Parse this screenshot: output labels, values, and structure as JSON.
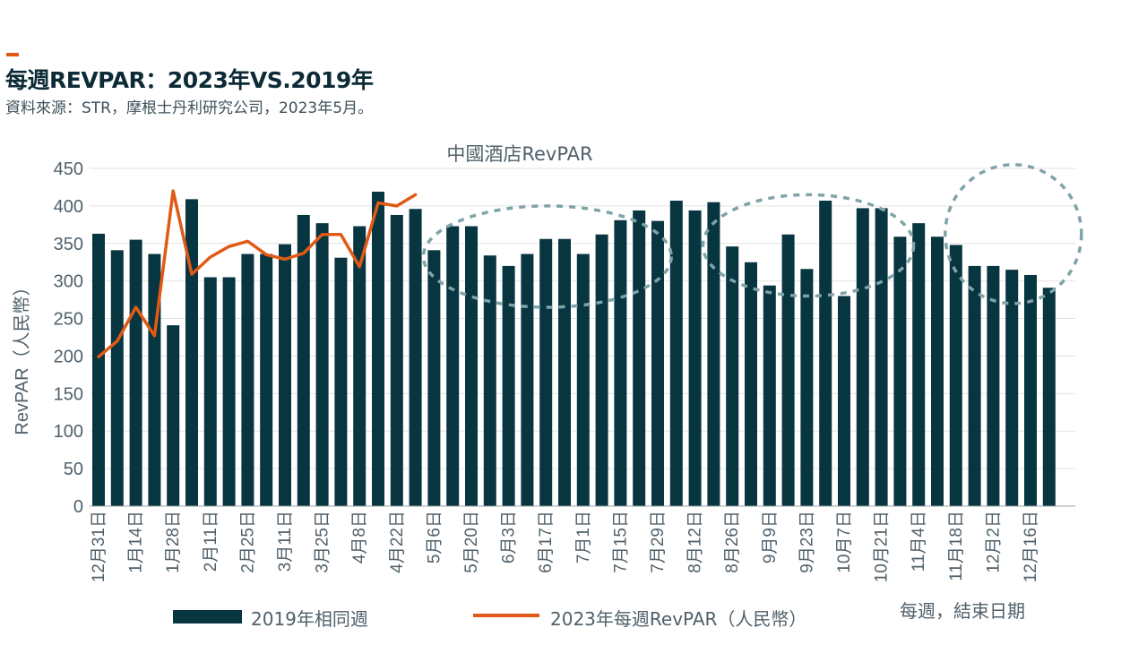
{
  "header": {
    "title": "每週REVPAR：2023年VS.2019年",
    "source": "資料來源：STR，摩根士丹利研究公司，2023年5月。"
  },
  "legend": {
    "bar_label": "2019年相同週",
    "line_label": "2023年每週RevPAR（人民幣）"
  },
  "x_axis_caption": "每週，結束日期",
  "colors": {
    "bars": "#073540",
    "line": "#e05a16",
    "highlight_ellipses": "#7fa3a8",
    "gridlines": "#e2e2e2",
    "text": "#50606a"
  },
  "chart_data": {
    "type": "bar",
    "title": "中國酒店RevPAR",
    "ylabel": "RevPAR（人民幣）",
    "ylim": [
      0,
      450
    ],
    "yticks": [
      0,
      50,
      100,
      150,
      200,
      250,
      300,
      350,
      400,
      450
    ],
    "grid": true,
    "legend_position": "bottom",
    "categories": [
      "12月31日",
      "",
      "1月14日",
      "",
      "1月28日",
      "",
      "2月11日",
      "",
      "2月25日",
      "",
      "3月11日",
      "",
      "3月25日",
      "",
      "4月8日",
      "",
      "4月22日",
      "",
      "5月6日",
      "",
      "5月20日",
      "",
      "6月3日",
      "",
      "6月17日",
      "",
      "7月1日",
      "",
      "7月15日",
      "",
      "7月29日",
      "",
      "8月12日",
      "",
      "8月26日",
      "",
      "9月9日",
      "",
      "9月23日",
      "",
      "10月7日",
      "",
      "10月21日",
      "",
      "11月4日",
      "",
      "11月18日",
      "",
      "12月2日",
      "",
      "12月16日",
      ""
    ],
    "series": [
      {
        "name": "2019年相同週",
        "type": "bar",
        "values": [
          363,
          341,
          355,
          336,
          241,
          409,
          305,
          305,
          336,
          336,
          349,
          388,
          377,
          331,
          373,
          419,
          388,
          396,
          341,
          373,
          373,
          334,
          320,
          336,
          356,
          356,
          336,
          362,
          381,
          394,
          380,
          407,
          394,
          405,
          346,
          325,
          294,
          362,
          316,
          407,
          280,
          397,
          397,
          359,
          377,
          359,
          348,
          320,
          320,
          315,
          308,
          291
        ]
      },
      {
        "name": "2023年每週RevPAR（人民幣）",
        "type": "line",
        "values": [
          199,
          220,
          265,
          227,
          420,
          309,
          332,
          346,
          353,
          335,
          329,
          337,
          362,
          362,
          319,
          404,
          400,
          415,
          null,
          null,
          null,
          null,
          null,
          null,
          null,
          null,
          null,
          null,
          null,
          null,
          null,
          null,
          null,
          null,
          null,
          null,
          null,
          null,
          null,
          null,
          null,
          null,
          null,
          null,
          null,
          null,
          null,
          null,
          null,
          null,
          null,
          null
        ]
      }
    ],
    "annotations": [
      {
        "shape": "dashed-ellipse",
        "from_category_index": 18,
        "to_category_index": 29
      },
      {
        "shape": "dashed-ellipse",
        "from_category_index": 33,
        "to_category_index": 42
      },
      {
        "shape": "dashed-ellipse",
        "from_category_index": 46,
        "to_category_index": 51
      }
    ]
  }
}
